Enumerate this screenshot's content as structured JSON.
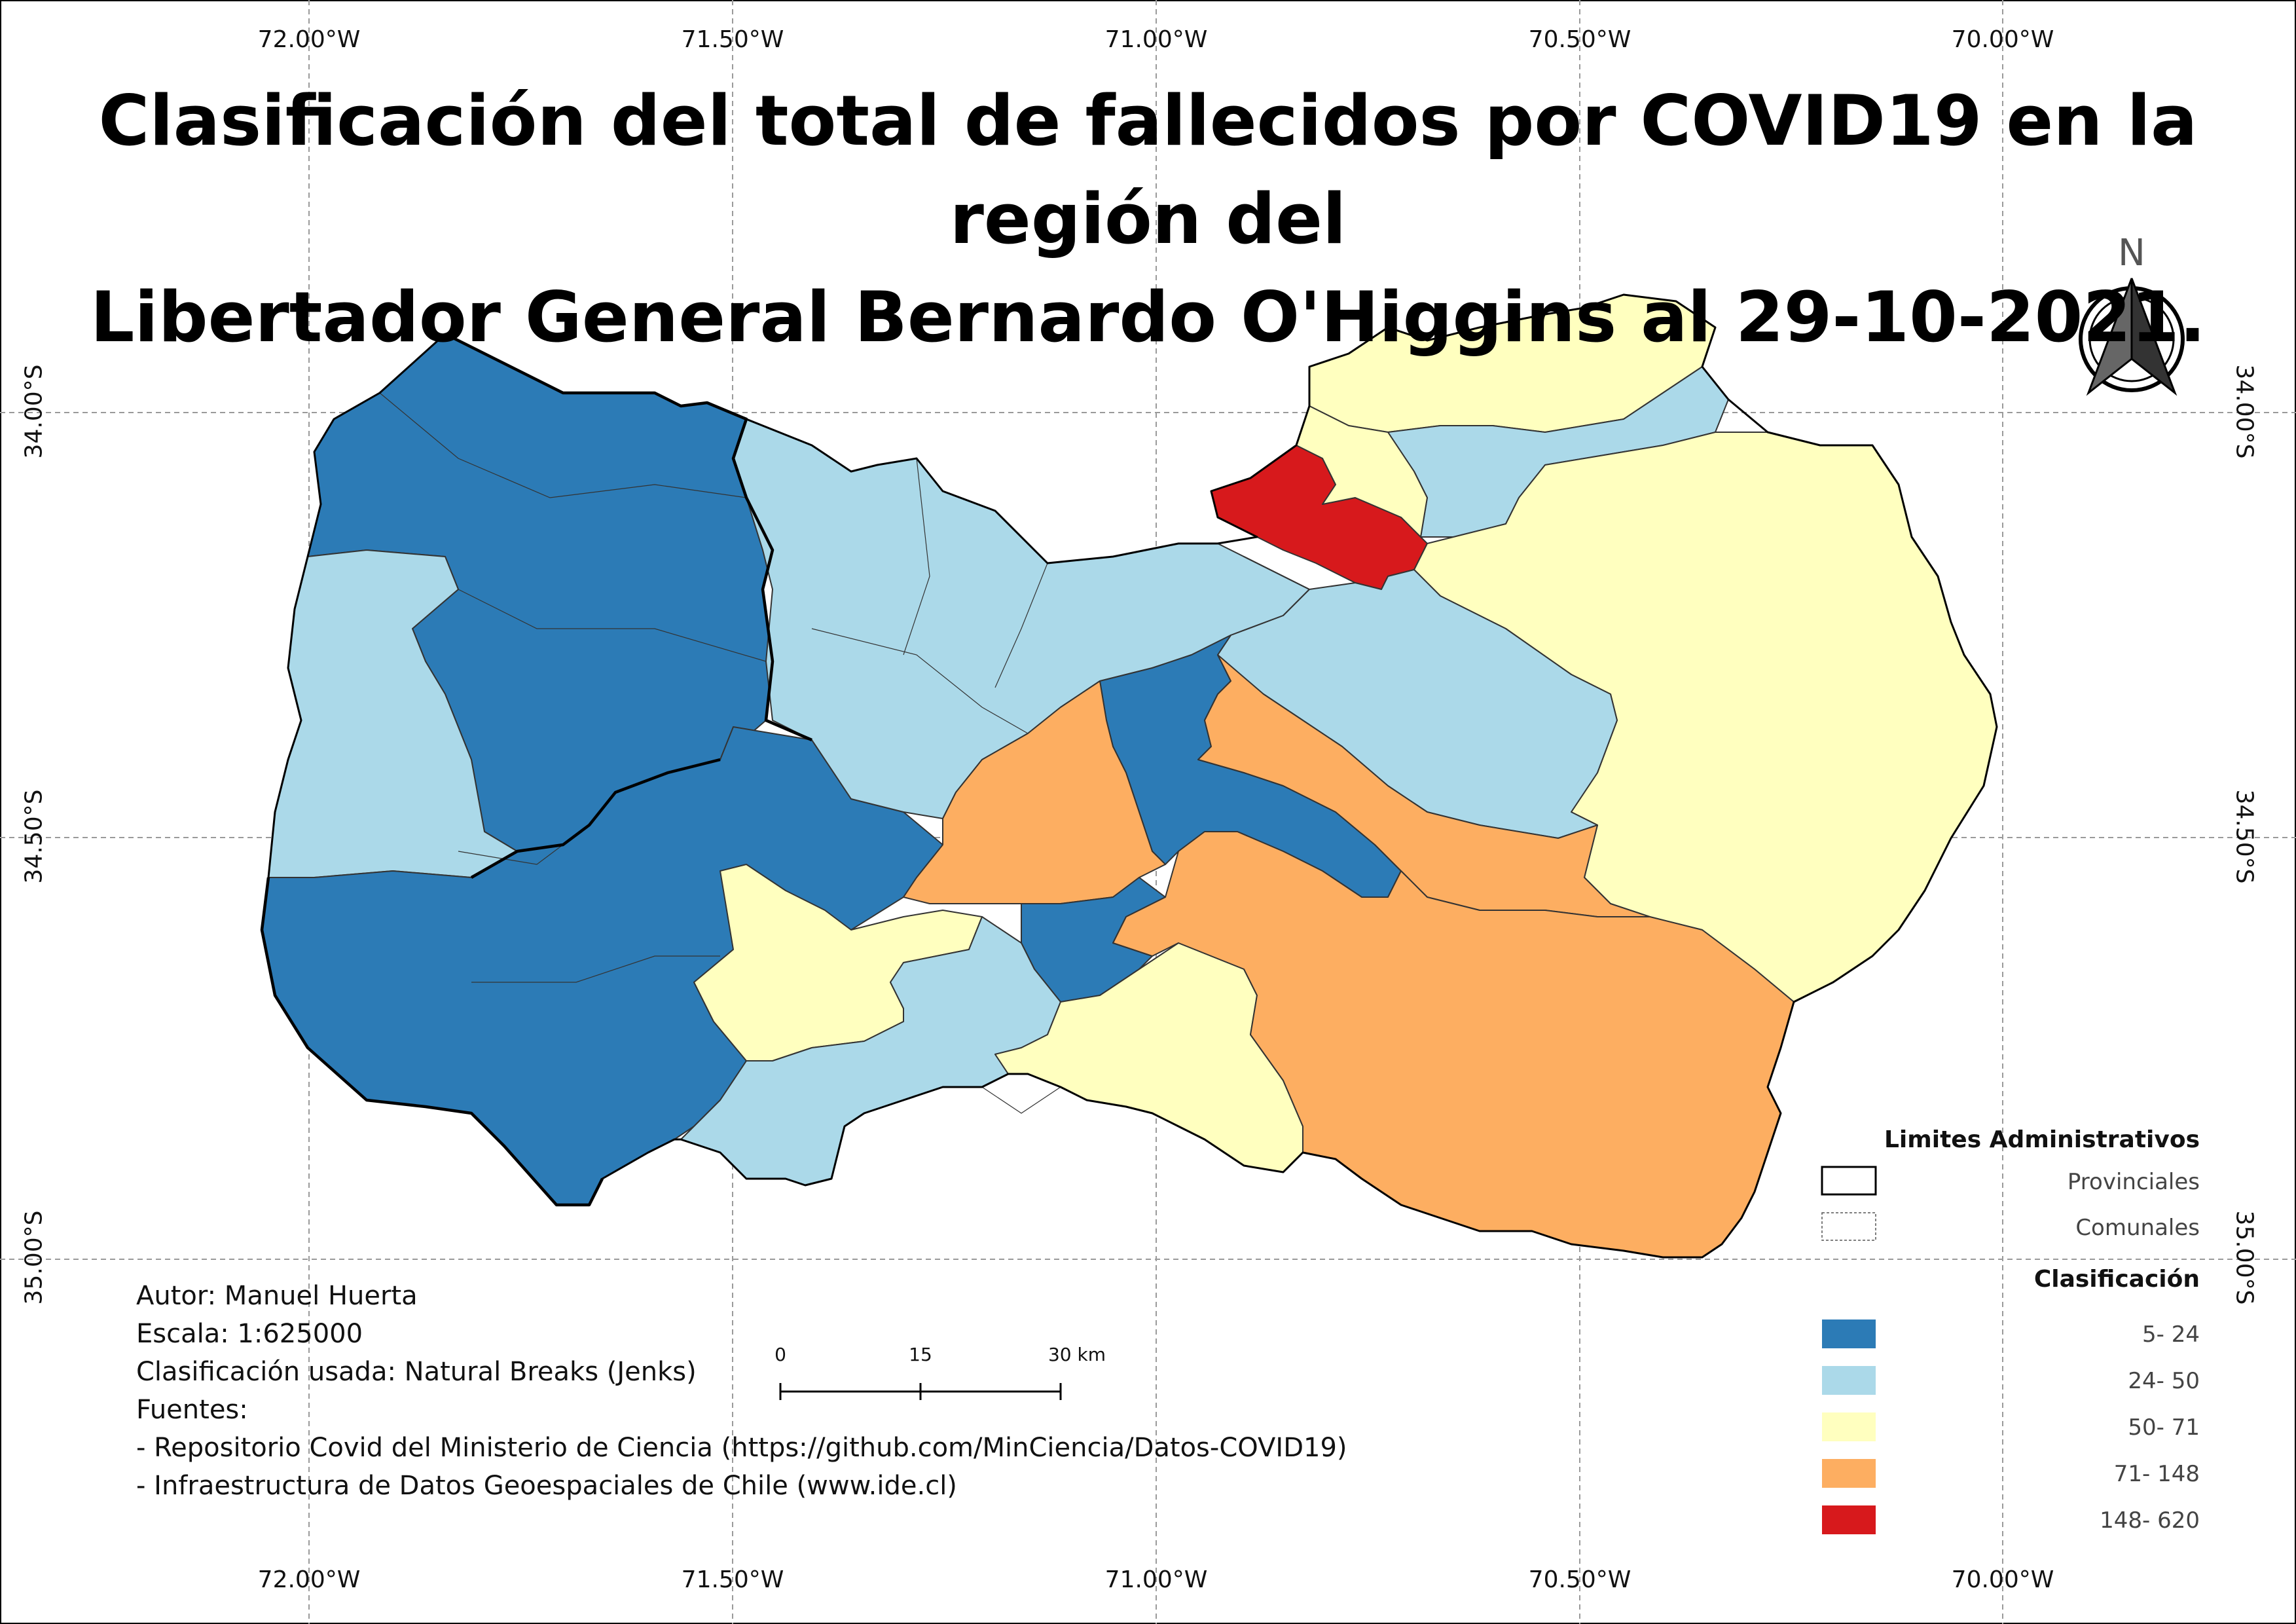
{
  "title": {
    "line1": "Clasificación del total de fallecidos por COVID19 en la región del",
    "line2": "Libertador General Bernardo O'Higgins al 29-10-2021."
  },
  "graticule": {
    "longitudes": [
      "72.00°W",
      "71.50°W",
      "71.00°W",
      "70.50°W",
      "70.00°W"
    ],
    "latitudes": [
      "34.00°S",
      "34.50°S",
      "35.00°S"
    ]
  },
  "north_arrow": {
    "label": "N",
    "icon": "north-arrow-icon"
  },
  "scale_bar": {
    "labels": [
      "0",
      "15",
      "30 km"
    ]
  },
  "info": {
    "author": "Autor: Manuel Huerta",
    "scale": "Escala: 1:625000",
    "method": "Clasificación usada: Natural Breaks (Jenks)",
    "sources_heading": "Fuentes:",
    "source1": "- Repositorio Covid del Ministerio de Ciencia (https://github.com/MinCiencia/Datos-COVID19)",
    "source2": "- Infraestructura de Datos Geoespaciales de Chile (www.ide.cl)"
  },
  "legend": {
    "admin_title": "Limites Administrativos",
    "admin_items": [
      {
        "label": "Provinciales"
      },
      {
        "label": "Comunales"
      }
    ],
    "class_title": "Clasificación",
    "classes": [
      {
        "label": "5- 24",
        "color": "#2c7bb6"
      },
      {
        "label": "24- 50",
        "color": "#abd9e9"
      },
      {
        "label": "50- 71",
        "color": "#ffffbf"
      },
      {
        "label": "71- 148",
        "color": "#fdae61"
      },
      {
        "label": "148- 620",
        "color": "#d7191c"
      }
    ]
  }
}
